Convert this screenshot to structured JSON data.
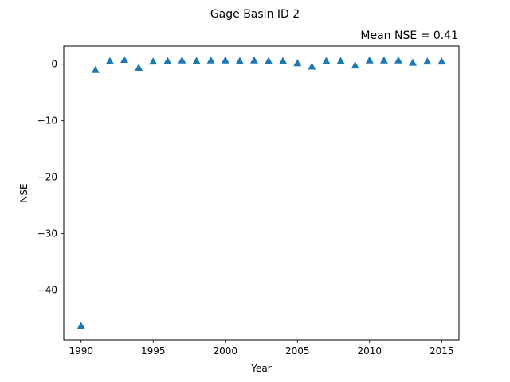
{
  "chart_data": {
    "type": "scatter",
    "title": "Gage Basin ID 2",
    "subtitle": "Mean NSE = 0.41",
    "xlabel": "Year",
    "ylabel": "NSE",
    "xlim": [
      1988.8,
      2016.2
    ],
    "ylim": [
      -48.8,
      3.2
    ],
    "xticks": [
      1990,
      1995,
      2000,
      2005,
      2010,
      2015
    ],
    "xtick_labels": [
      "1990",
      "1995",
      "2000",
      "2005",
      "2010",
      "2015"
    ],
    "yticks": [
      0,
      -10,
      -20,
      -30,
      -40
    ],
    "ytick_labels": [
      "0",
      "−10",
      "−20",
      "−30",
      "−40"
    ],
    "marker": "triangle-up",
    "color": "#1f77b4",
    "grid": false,
    "x": [
      1990,
      1991,
      1992,
      1993,
      1994,
      1995,
      1996,
      1997,
      1998,
      1999,
      2000,
      2001,
      2002,
      2003,
      2004,
      2005,
      2006,
      2007,
      2008,
      2009,
      2010,
      2011,
      2012,
      2013,
      2014,
      2015
    ],
    "y": [
      -46.3,
      -1.0,
      0.6,
      0.8,
      -0.6,
      0.5,
      0.6,
      0.7,
      0.6,
      0.7,
      0.7,
      0.6,
      0.7,
      0.6,
      0.6,
      0.2,
      -0.4,
      0.6,
      0.6,
      -0.2,
      0.7,
      0.7,
      0.7,
      0.3,
      0.5,
      0.5
    ]
  }
}
